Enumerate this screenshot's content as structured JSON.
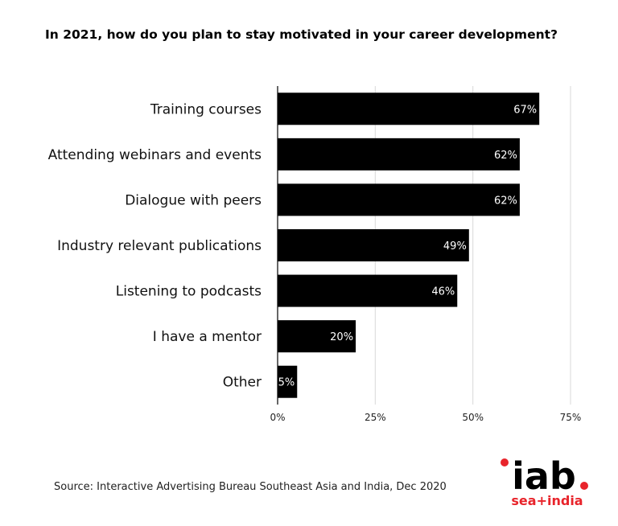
{
  "title": "In 2021, how do you plan to stay motivated in your career development?",
  "source": "Source: Interactive Advertising Bureau Southeast Asia and India, Dec 2020",
  "logo": {
    "main": "iab",
    "sub": "sea+india",
    "accent_color": "#e8242b"
  },
  "colors": {
    "bar": "#000000",
    "bar_label": "#ffffff",
    "grid": "#d9d9d9",
    "axis": "#000000"
  },
  "chart_data": {
    "type": "bar",
    "orientation": "horizontal",
    "categories": [
      "Training courses",
      "Attending webinars and events",
      "Dialogue with peers",
      "Industry relevant publications",
      "Listening to podcasts",
      "I have a mentor",
      "Other"
    ],
    "values": [
      67,
      62,
      62,
      49,
      46,
      20,
      5
    ],
    "value_labels": [
      "67%",
      "62%",
      "62%",
      "49%",
      "46%",
      "20%",
      "5%"
    ],
    "xlim": [
      0,
      75
    ],
    "xticks": [
      0,
      25,
      50,
      75
    ],
    "xtick_labels": [
      "0%",
      "25%",
      "50%",
      "75%"
    ],
    "grid": true
  }
}
